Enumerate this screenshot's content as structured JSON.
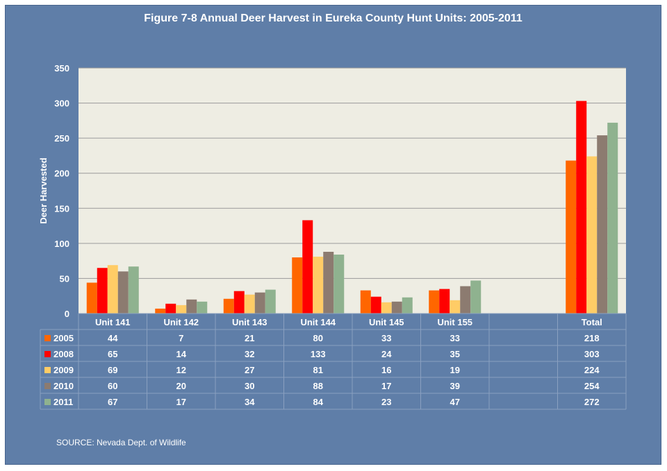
{
  "title": "Figure 7-8 Annual Deer Harvest in Eureka County Hunt Units: 2005-2011",
  "source": "SOURCE: Nevada Dept. of Wildlife",
  "colors": {
    "background": "#5f7ea8",
    "plot_area": "#eeede3",
    "grid": "#9a9a9a"
  },
  "chart_data": {
    "type": "bar",
    "title": "Figure 7-8 Annual Deer Harvest in Eureka County Hunt Units: 2005-2011",
    "xlabel": "",
    "ylabel": "Deer Harvested",
    "ylim": [
      0,
      350
    ],
    "yticks": [
      0,
      50,
      100,
      150,
      200,
      250,
      300,
      350
    ],
    "grid": true,
    "legend": "data-table-left",
    "categories": [
      "Unit 141",
      "Unit 142",
      "Unit 143",
      "Unit 144",
      "Unit 145",
      "Unit 155",
      "",
      "Total"
    ],
    "series": [
      {
        "name": "2005",
        "color": "#ff6600",
        "values": [
          44,
          7,
          21,
          80,
          33,
          33,
          null,
          218
        ]
      },
      {
        "name": "2008",
        "color": "#ff0000",
        "values": [
          65,
          14,
          32,
          133,
          24,
          35,
          null,
          303
        ]
      },
      {
        "name": "2009",
        "color": "#ffcc66",
        "values": [
          69,
          12,
          27,
          81,
          16,
          19,
          null,
          224
        ]
      },
      {
        "name": "2010",
        "color": "#8c7b70",
        "values": [
          60,
          20,
          30,
          88,
          17,
          39,
          null,
          254
        ]
      },
      {
        "name": "2011",
        "color": "#8fb28f",
        "values": [
          67,
          17,
          34,
          84,
          23,
          47,
          null,
          272
        ]
      }
    ]
  }
}
